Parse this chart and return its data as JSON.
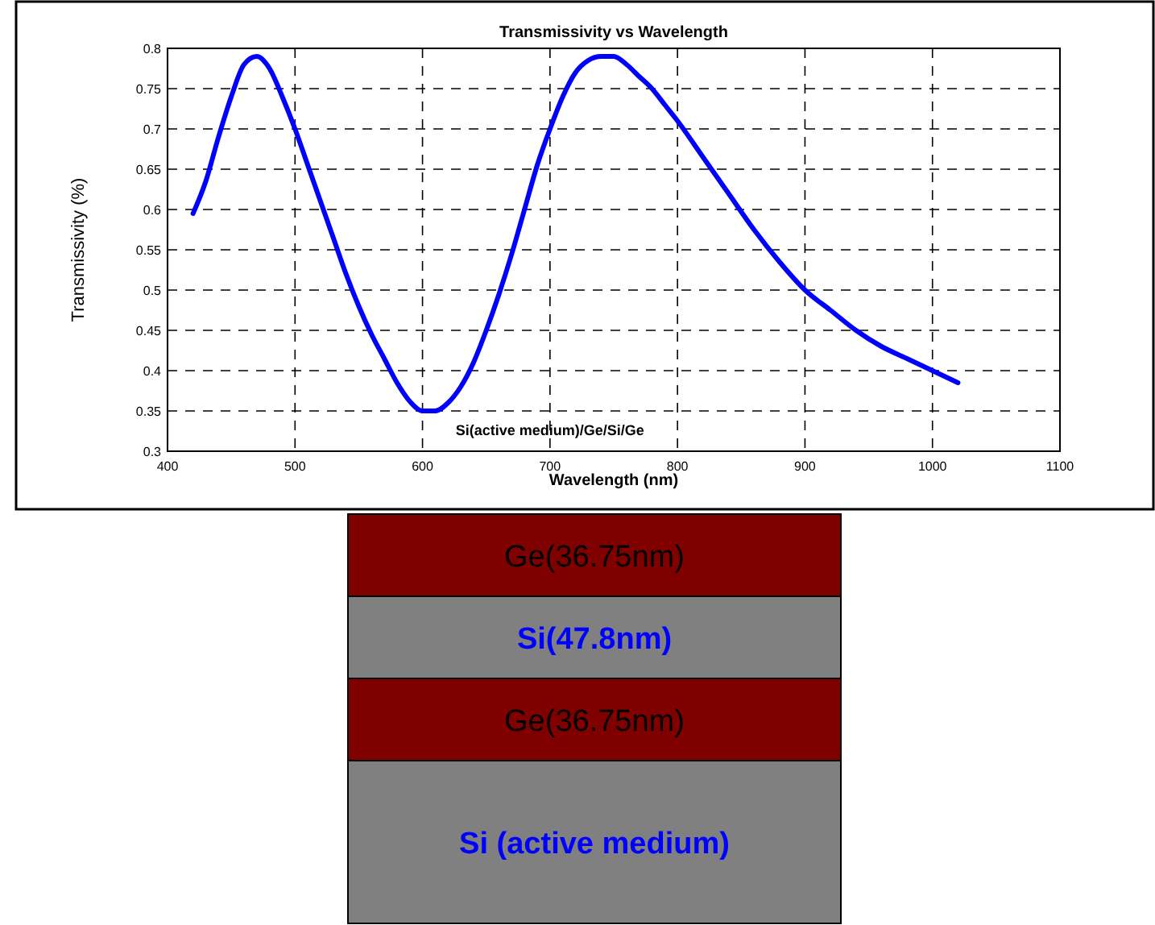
{
  "chart_data": {
    "type": "line",
    "title": "Transmissivity vs Wavelength",
    "xlabel": "Wavelength (nm)",
    "ylabel": "Transmissivity (%)",
    "x": [
      420,
      430,
      440,
      450,
      460,
      470,
      480,
      490,
      500,
      510,
      520,
      530,
      540,
      550,
      560,
      570,
      580,
      590,
      600,
      610,
      620,
      630,
      640,
      650,
      660,
      670,
      680,
      690,
      700,
      710,
      720,
      730,
      740,
      750,
      760,
      770,
      780,
      790,
      800,
      820,
      840,
      860,
      880,
      900,
      920,
      940,
      960,
      980,
      1000,
      1020
    ],
    "series": [
      {
        "color": "#0000ff",
        "values": [
          0.595,
          0.635,
          0.69,
          0.74,
          0.78,
          0.79,
          0.775,
          0.74,
          0.7,
          0.655,
          0.61,
          0.565,
          0.52,
          0.48,
          0.445,
          0.415,
          0.385,
          0.362,
          0.35,
          0.35,
          0.36,
          0.38,
          0.41,
          0.45,
          0.495,
          0.545,
          0.6,
          0.655,
          0.7,
          0.74,
          0.77,
          0.785,
          0.79,
          0.79,
          0.78,
          0.765,
          0.75,
          0.73,
          0.71,
          0.665,
          0.62,
          0.575,
          0.535,
          0.5,
          0.475,
          0.45,
          0.43,
          0.415,
          0.4,
          0.385
        ]
      }
    ],
    "xlim": [
      400,
      1100
    ],
    "xticks": [
      400,
      500,
      600,
      700,
      800,
      900,
      1000,
      1100
    ],
    "ylim": [
      0.3,
      0.8
    ],
    "yticks": [
      0.3,
      0.35,
      0.4,
      0.45,
      0.5,
      0.55,
      0.6,
      0.65,
      0.7,
      0.75,
      0.8
    ],
    "grid": true,
    "line_style": "solid",
    "marker": "none",
    "annotations": [
      "Si(active medium)/Ge/Si/Ge",
      "Ge(36.75nm)",
      "Si(47.8nm)",
      "Ge(36.75nm)",
      "Si (active medium)"
    ]
  }
}
